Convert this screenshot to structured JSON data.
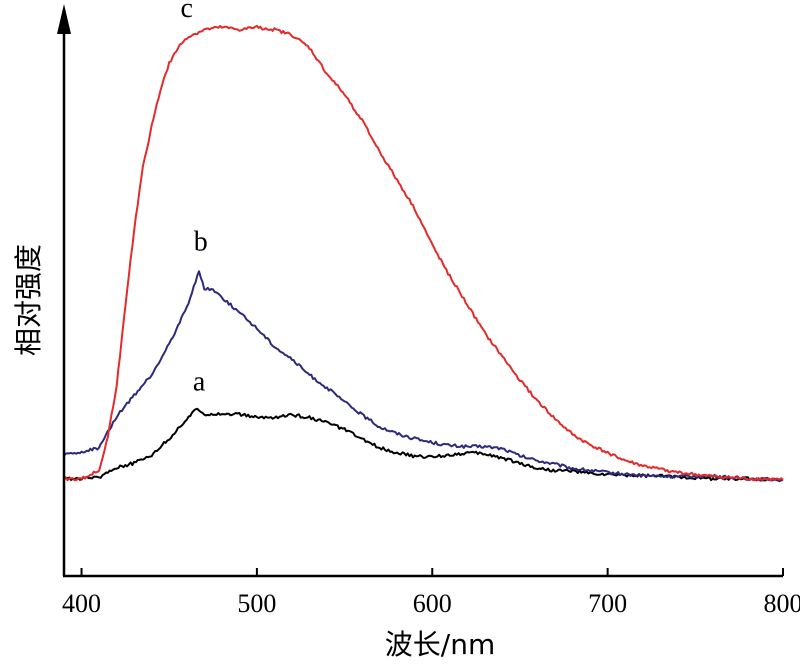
{
  "chart_data": {
    "type": "line",
    "xlabel": "波长/nm",
    "ylabel": "相对强度",
    "xlim": [
      390,
      800
    ],
    "ylim": [
      0,
      100
    ],
    "x_ticks": [
      400,
      500,
      600,
      700,
      800
    ],
    "x_tick_labels": [
      "400",
      "500",
      "600",
      "700",
      "800"
    ],
    "y_ticks_shown": false,
    "grid": false,
    "legend": "none",
    "series": [
      {
        "name": "a",
        "color": "#000000",
        "points": [
          [
            390,
            12
          ],
          [
            400,
            12
          ],
          [
            410,
            12.3
          ],
          [
            420,
            14.2
          ],
          [
            430,
            15
          ],
          [
            440,
            16.6
          ],
          [
            450,
            19.7
          ],
          [
            460,
            23.5
          ],
          [
            466,
            25.5
          ],
          [
            470,
            24.5
          ],
          [
            480,
            24.5
          ],
          [
            490,
            24.4
          ],
          [
            500,
            23.8
          ],
          [
            510,
            23.8
          ],
          [
            520,
            24.3
          ],
          [
            530,
            23.8
          ],
          [
            540,
            22.8
          ],
          [
            550,
            21.5
          ],
          [
            560,
            19.6
          ],
          [
            570,
            18
          ],
          [
            580,
            17
          ],
          [
            590,
            16.3
          ],
          [
            600,
            16.2
          ],
          [
            610,
            16.6
          ],
          [
            620,
            17
          ],
          [
            630,
            16.8
          ],
          [
            640,
            16
          ],
          [
            650,
            15
          ],
          [
            660,
            14
          ],
          [
            670,
            13.6
          ],
          [
            680,
            13.5
          ],
          [
            690,
            13
          ],
          [
            700,
            12.8
          ],
          [
            720,
            12.6
          ],
          [
            740,
            12.4
          ],
          [
            760,
            12
          ],
          [
            780,
            12
          ],
          [
            800,
            11.8
          ]
        ]
      },
      {
        "name": "b",
        "color": "#2e2a7a",
        "points": [
          [
            390,
            16.6
          ],
          [
            400,
            17
          ],
          [
            410,
            18
          ],
          [
            415,
            21
          ],
          [
            420,
            24
          ],
          [
            430,
            28
          ],
          [
            440,
            32
          ],
          [
            450,
            38
          ],
          [
            460,
            45
          ],
          [
            467,
            52
          ],
          [
            470,
            48.5
          ],
          [
            475,
            48.5
          ],
          [
            480,
            47
          ],
          [
            490,
            44
          ],
          [
            500,
            41
          ],
          [
            510,
            37.5
          ],
          [
            520,
            35
          ],
          [
            530,
            32
          ],
          [
            540,
            29.5
          ],
          [
            550,
            26.8
          ],
          [
            560,
            24.3
          ],
          [
            570,
            22
          ],
          [
            580,
            20.7
          ],
          [
            590,
            19.7
          ],
          [
            600,
            19
          ],
          [
            610,
            18.4
          ],
          [
            620,
            18.2
          ],
          [
            630,
            18.2
          ],
          [
            640,
            17.8
          ],
          [
            650,
            16.4
          ],
          [
            660,
            15.5
          ],
          [
            670,
            14.8
          ],
          [
            680,
            14
          ],
          [
            690,
            13.6
          ],
          [
            700,
            13.2
          ],
          [
            720,
            12.6
          ],
          [
            740,
            12.4
          ],
          [
            760,
            12.5
          ],
          [
            780,
            12
          ],
          [
            800,
            11.8
          ]
        ]
      },
      {
        "name": "c",
        "color": "#e42a2a",
        "points": [
          [
            390,
            12
          ],
          [
            400,
            12
          ],
          [
            410,
            13.5
          ],
          [
            415,
            20
          ],
          [
            420,
            30
          ],
          [
            425,
            45
          ],
          [
            430,
            60
          ],
          [
            435,
            72
          ],
          [
            440,
            80
          ],
          [
            445,
            87
          ],
          [
            450,
            92
          ],
          [
            455,
            95
          ],
          [
            460,
            97
          ],
          [
            470,
            98.5
          ],
          [
            480,
            99
          ],
          [
            490,
            98.5
          ],
          [
            500,
            99
          ],
          [
            510,
            98.5
          ],
          [
            520,
            97.5
          ],
          [
            530,
            95
          ],
          [
            540,
            90
          ],
          [
            550,
            86
          ],
          [
            560,
            81
          ],
          [
            570,
            75
          ],
          [
            580,
            69.5
          ],
          [
            590,
            64
          ],
          [
            600,
            57
          ],
          [
            610,
            51
          ],
          [
            620,
            45.5
          ],
          [
            630,
            40
          ],
          [
            640,
            35.5
          ],
          [
            650,
            31
          ],
          [
            660,
            27
          ],
          [
            670,
            23.5
          ],
          [
            680,
            20.5
          ],
          [
            690,
            18.5
          ],
          [
            700,
            17
          ],
          [
            710,
            15.5
          ],
          [
            720,
            14.5
          ],
          [
            730,
            13.8
          ],
          [
            740,
            13.2
          ],
          [
            750,
            12.8
          ],
          [
            760,
            12.4
          ],
          [
            780,
            12
          ],
          [
            800,
            11.8
          ]
        ]
      }
    ],
    "curve_labels": [
      {
        "text": "a",
        "x": 467,
        "y": 29
      },
      {
        "text": "b",
        "x": 468,
        "y": 56
      },
      {
        "text": "c",
        "x": 460,
        "y": 101
      }
    ]
  }
}
